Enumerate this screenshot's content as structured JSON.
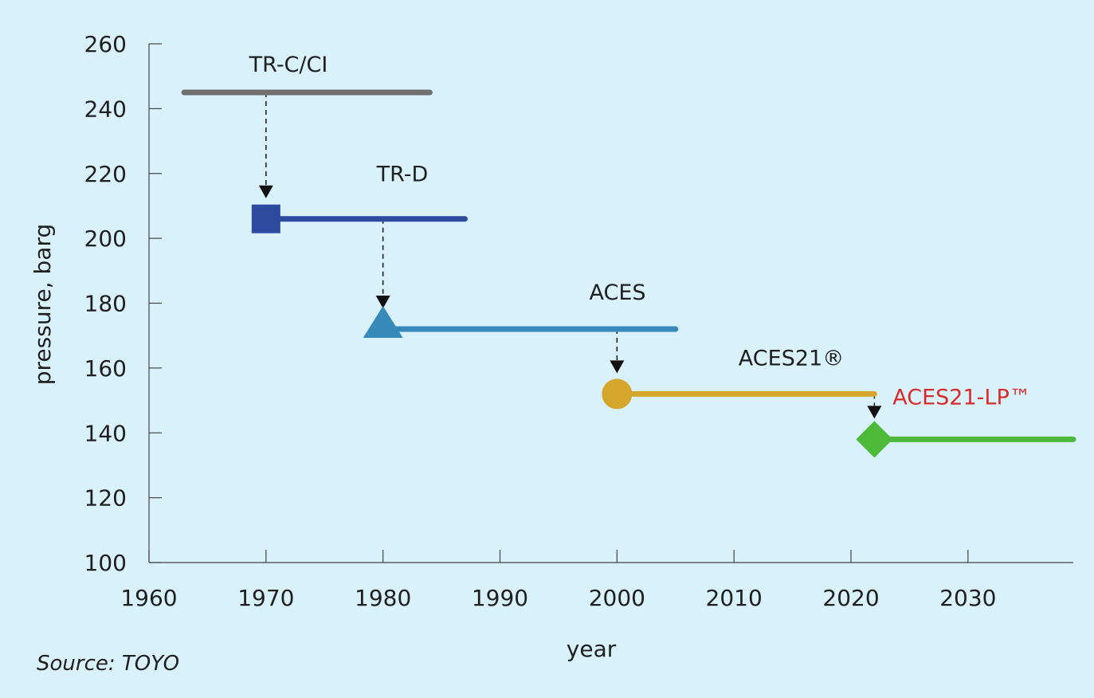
{
  "chart_data": {
    "type": "line",
    "xlabel": "year",
    "ylabel": "pressure, barg",
    "xlim": [
      1960,
      2039
    ],
    "ylim": [
      100,
      260
    ],
    "xticks": [
      1960,
      1970,
      1980,
      1990,
      2000,
      2010,
      2020,
      2030
    ],
    "yticks": [
      100,
      120,
      140,
      160,
      180,
      200,
      220,
      240,
      260
    ],
    "grid": false,
    "series": [
      {
        "name": "TR-C/CI",
        "start": 1963,
        "end": 1984,
        "pressure": 245,
        "color": "#707070",
        "marker": "none",
        "label_color": "#1f1f1f"
      },
      {
        "name": "TR-D",
        "start": 1970,
        "end": 1987,
        "pressure": 206,
        "color": "#2e4a9e",
        "marker": "square",
        "label_color": "#1f1f1f"
      },
      {
        "name": "ACES",
        "start": 1980,
        "end": 2005,
        "pressure": 172,
        "color": "#3789b9",
        "marker": "triangle",
        "label_color": "#1f1f1f"
      },
      {
        "name": "ACES21®",
        "start": 2000,
        "end": 2022,
        "pressure": 152,
        "color": "#d4a72c",
        "marker": "circle",
        "label_color": "#1f1f1f"
      },
      {
        "name": "ACES21-LP™",
        "start": 2022,
        "end": 2039,
        "pressure": 138,
        "color": "#4cba38",
        "marker": "diamond",
        "label_color": "#d92b2b"
      }
    ],
    "arrows": [
      {
        "x": 1970,
        "from": 245,
        "to": 206
      },
      {
        "x": 1980,
        "from": 206,
        "to": 172
      },
      {
        "x": 2000,
        "from": 172,
        "to": 152
      },
      {
        "x": 2022,
        "from": 152,
        "to": 138
      }
    ]
  },
  "source": "Source: TOYO"
}
